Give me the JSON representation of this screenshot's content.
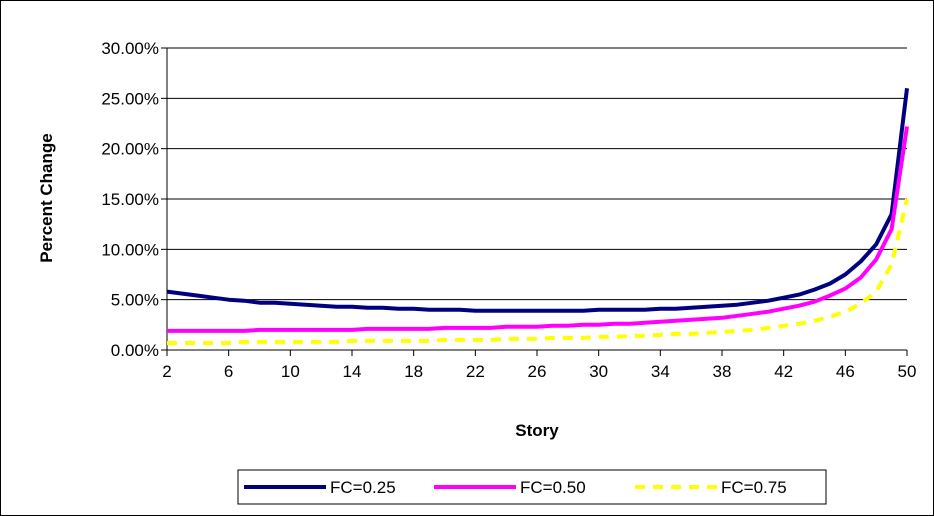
{
  "chart_data": {
    "type": "line",
    "xlabel": "Story",
    "ylabel": "Percent Change",
    "x_ticks": [
      "2",
      "6",
      "10",
      "14",
      "18",
      "22",
      "26",
      "30",
      "34",
      "38",
      "42",
      "46",
      "50"
    ],
    "y_ticks": [
      "0.00%",
      "5.00%",
      "10.00%",
      "15.00%",
      "20.00%",
      "25.00%",
      "30.00%"
    ],
    "xlim": [
      2,
      50
    ],
    "ylim": [
      0,
      30
    ],
    "grid": "horizontal",
    "legend": "bottom",
    "x": [
      2,
      3,
      4,
      5,
      6,
      7,
      8,
      9,
      10,
      11,
      12,
      13,
      14,
      15,
      16,
      17,
      18,
      19,
      20,
      21,
      22,
      23,
      24,
      25,
      26,
      27,
      28,
      29,
      30,
      31,
      32,
      33,
      34,
      35,
      36,
      37,
      38,
      39,
      40,
      41,
      42,
      43,
      44,
      45,
      46,
      47,
      48,
      49,
      50
    ],
    "series": [
      {
        "name": "FC=0.25",
        "color": "#000080",
        "style": "solid",
        "values": [
          5.8,
          5.6,
          5.4,
          5.2,
          5.0,
          4.9,
          4.7,
          4.7,
          4.6,
          4.5,
          4.4,
          4.3,
          4.3,
          4.2,
          4.2,
          4.1,
          4.1,
          4.0,
          4.0,
          4.0,
          3.9,
          3.9,
          3.9,
          3.9,
          3.9,
          3.9,
          3.9,
          3.9,
          4.0,
          4.0,
          4.0,
          4.0,
          4.1,
          4.1,
          4.2,
          4.3,
          4.4,
          4.5,
          4.7,
          4.9,
          5.2,
          5.5,
          6.0,
          6.6,
          7.5,
          8.8,
          10.5,
          13.5,
          26.0
        ]
      },
      {
        "name": "FC=0.50",
        "color": "#FF00FF",
        "style": "solid",
        "values": [
          1.9,
          1.9,
          1.9,
          1.9,
          1.9,
          1.9,
          2.0,
          2.0,
          2.0,
          2.0,
          2.0,
          2.0,
          2.0,
          2.1,
          2.1,
          2.1,
          2.1,
          2.1,
          2.2,
          2.2,
          2.2,
          2.2,
          2.3,
          2.3,
          2.3,
          2.4,
          2.4,
          2.5,
          2.5,
          2.6,
          2.6,
          2.7,
          2.8,
          2.9,
          3.0,
          3.1,
          3.2,
          3.4,
          3.6,
          3.8,
          4.1,
          4.4,
          4.8,
          5.4,
          6.1,
          7.2,
          9.0,
          12.0,
          22.2
        ]
      },
      {
        "name": "FC=0.75",
        "color": "#FFFF00",
        "style": "dashed",
        "values": [
          0.7,
          0.7,
          0.7,
          0.7,
          0.7,
          0.8,
          0.8,
          0.8,
          0.8,
          0.8,
          0.8,
          0.8,
          0.9,
          0.9,
          0.9,
          0.9,
          0.9,
          0.9,
          1.0,
          1.0,
          1.0,
          1.0,
          1.1,
          1.1,
          1.1,
          1.2,
          1.2,
          1.2,
          1.3,
          1.3,
          1.4,
          1.4,
          1.5,
          1.6,
          1.6,
          1.7,
          1.8,
          1.9,
          2.0,
          2.2,
          2.4,
          2.6,
          2.9,
          3.3,
          3.8,
          4.6,
          5.8,
          8.5,
          15.0
        ]
      }
    ]
  }
}
